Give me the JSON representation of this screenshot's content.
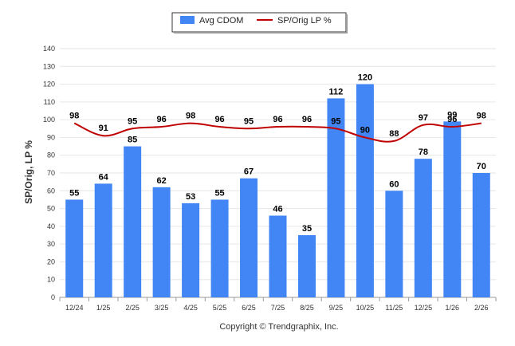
{
  "chart_data": {
    "type": "bar",
    "categories": [
      "12/24",
      "1/25",
      "2/25",
      "3/25",
      "4/25",
      "5/25",
      "6/25",
      "7/25",
      "8/25",
      "9/25",
      "10/25",
      "11/25",
      "12/25",
      "1/26",
      "2/26"
    ],
    "series": [
      {
        "name": "Avg CDOM",
        "kind": "bar",
        "color": "#4285f4",
        "values": [
          55,
          64,
          85,
          62,
          53,
          55,
          67,
          46,
          35,
          112,
          120,
          60,
          78,
          99,
          70
        ]
      },
      {
        "name": "SP/Orig LP %",
        "kind": "line",
        "color": "#c00000",
        "values": [
          98,
          91,
          95,
          96,
          98,
          96,
          95,
          96,
          96,
          95,
          90,
          88,
          97,
          96,
          98
        ]
      }
    ],
    "ylabel": "SP/Orig, LP %",
    "xlabel": "",
    "ylim": [
      0,
      140
    ],
    "yticks": [
      "0",
      "10",
      "20",
      "30",
      "40",
      "50",
      "60",
      "70",
      "80",
      "90",
      "100",
      "110",
      "120",
      "130",
      "140"
    ],
    "legend": "top-center",
    "grid": true,
    "credit": "Copyright © Trendgraphix, Inc."
  }
}
